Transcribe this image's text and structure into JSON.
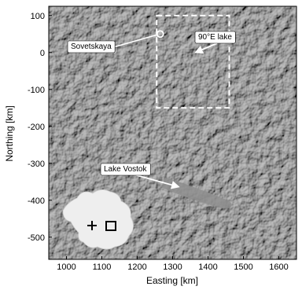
{
  "map": {
    "xlabel": "Easting [km]",
    "ylabel": "Northing [km]",
    "x_ticks": [
      1000,
      1100,
      1200,
      1300,
      1400,
      1500,
      1600
    ],
    "y_ticks": [
      100,
      0,
      -100,
      -200,
      -300,
      -400,
      -500
    ],
    "xlim": [
      950,
      1650
    ],
    "ylim": [
      -560,
      125
    ],
    "colormap": "grayscale shaded relief",
    "labels": {
      "sovetskaya": "Sovetskaya",
      "lake90e": "90°E lake",
      "vostok": "Lake Vostok"
    },
    "study_box": {
      "x": [
        1255,
        1460
      ],
      "y": [
        -150,
        100
      ]
    },
    "sovetskaya_point": {
      "x": 1265,
      "y": 50
    },
    "vostok_arrow_target": {
      "x": 1330,
      "y": -370
    },
    "lake90e_arrow_target": {
      "x": 1365,
      "y": 0
    },
    "inset": {
      "description_shapes": [
        "antarctica-outline",
        "cross-marker",
        "box-marker"
      ],
      "fill": "#eeeeee"
    }
  }
}
